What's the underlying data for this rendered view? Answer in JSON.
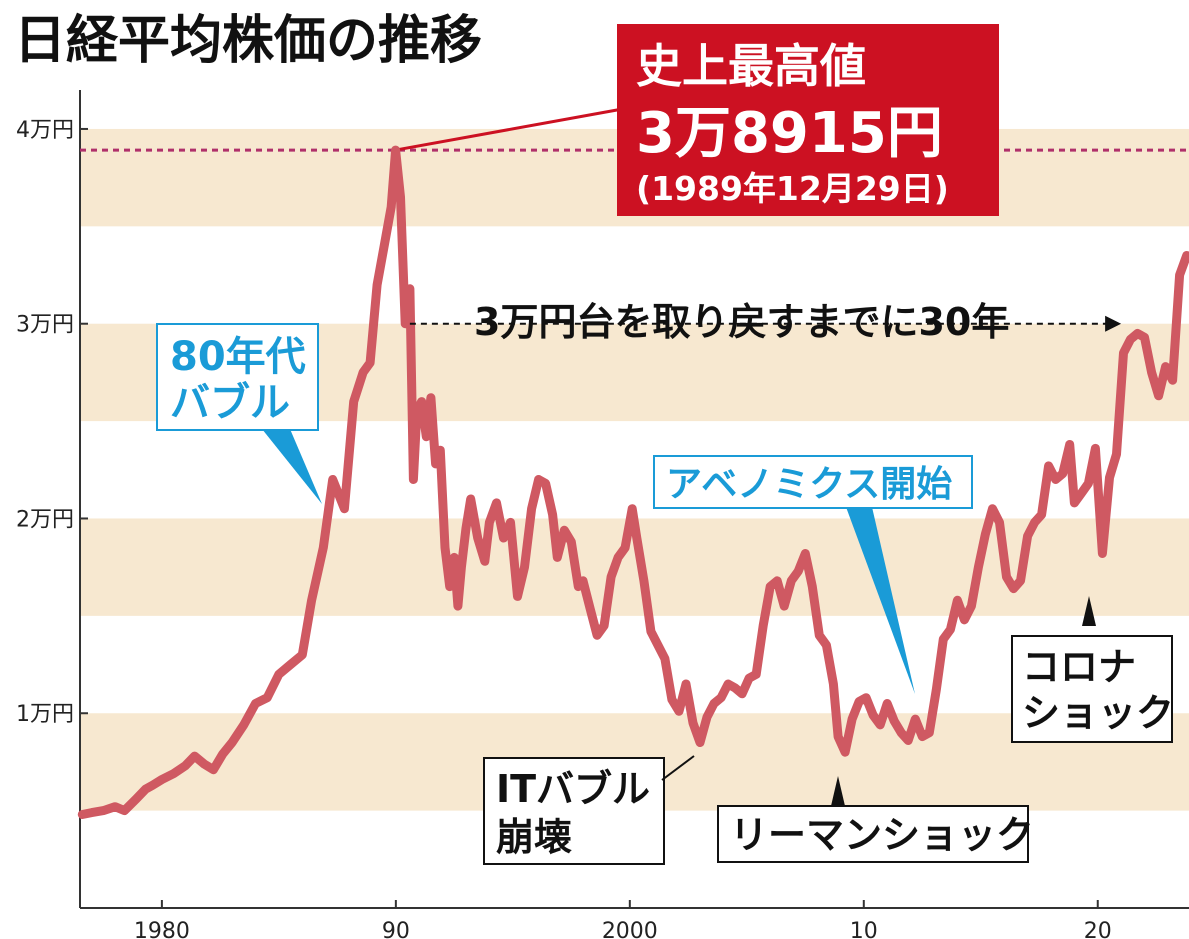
{
  "title": "日経平均株価の推移",
  "colors": {
    "line": "#cf5962",
    "band": "#f7e8d0",
    "record_box": "#cc1122",
    "record_dash": "#b0306a",
    "blue": "#1a9bd7",
    "axis": "#333333"
  },
  "chart_data": {
    "type": "line",
    "title": "日経平均株価の推移",
    "xlabel": "",
    "ylabel": "",
    "xlim": [
      1976.5,
      2023.9
    ],
    "ylim": [
      0,
      42000
    ],
    "x_tick_values": [
      1980,
      1990,
      2000,
      2010,
      2020
    ],
    "x_tick_labels": [
      "1980",
      "90",
      "2000",
      "10",
      "20"
    ],
    "y_tick_values": [
      10000,
      20000,
      30000,
      40000
    ],
    "y_tick_labels": [
      "1万円",
      "2万円",
      "3万円",
      "4万円"
    ],
    "bands": [
      [
        5000,
        10000
      ],
      [
        15000,
        20000
      ],
      [
        25000,
        30000
      ],
      [
        35000,
        40000
      ]
    ],
    "grid": false,
    "series": [
      {
        "x": [
          1976.6,
          1977.0,
          1977.5,
          1978.0,
          1978.4,
          1978.9,
          1979.3,
          1979.6,
          1980.0,
          1980.5,
          1981.0,
          1981.4,
          1981.8,
          1982.2,
          1982.6,
          1983.0,
          1983.5,
          1984.0,
          1984.5,
          1985.0,
          1985.5,
          1986.0,
          1986.4,
          1986.9,
          1987.3,
          1987.8,
          1988.2,
          1988.6,
          1988.9,
          1989.2,
          1989.5,
          1989.8,
          1989.99,
          1990.2,
          1990.4,
          1990.6,
          1990.75,
          1990.9,
          1991.1,
          1991.3,
          1991.5,
          1991.7,
          1991.9,
          1992.1,
          1992.3,
          1992.5,
          1992.65,
          1992.8,
          1993.0,
          1993.2,
          1993.5,
          1993.8,
          1994.0,
          1994.3,
          1994.6,
          1994.9,
          1995.2,
          1995.5,
          1995.8,
          1996.1,
          1996.4,
          1996.7,
          1996.9,
          1997.2,
          1997.5,
          1997.8,
          1998.0,
          1998.3,
          1998.6,
          1998.9,
          1999.2,
          1999.5,
          1999.8,
          2000.1,
          2000.3,
          2000.6,
          2000.9,
          2001.2,
          2001.5,
          2001.8,
          2002.1,
          2002.4,
          2002.7,
          2003.0,
          2003.3,
          2003.6,
          2003.9,
          2004.2,
          2004.5,
          2004.8,
          2005.1,
          2005.4,
          2005.7,
          2006.0,
          2006.3,
          2006.6,
          2006.9,
          2007.2,
          2007.5,
          2007.8,
          2008.1,
          2008.4,
          2008.7,
          2008.9,
          2009.2,
          2009.5,
          2009.8,
          2010.1,
          2010.4,
          2010.7,
          2011.0,
          2011.3,
          2011.6,
          2011.9,
          2012.2,
          2012.5,
          2012.8,
          2013.1,
          2013.4,
          2013.7,
          2014.0,
          2014.3,
          2014.6,
          2014.9,
          2015.2,
          2015.5,
          2015.8,
          2016.1,
          2016.4,
          2016.7,
          2017.0,
          2017.3,
          2017.6,
          2017.9,
          2018.2,
          2018.5,
          2018.8,
          2019.0,
          2019.3,
          2019.6,
          2019.9,
          2020.2,
          2020.5,
          2020.8,
          2021.1,
          2021.4,
          2021.7,
          2022.0,
          2022.3,
          2022.6,
          2022.9,
          2023.2,
          2023.5,
          2023.8
        ],
        "y": [
          4800,
          4900,
          5000,
          5200,
          5000,
          5600,
          6100,
          6300,
          6600,
          6900,
          7300,
          7800,
          7400,
          7100,
          7900,
          8500,
          9400,
          10500,
          10800,
          12000,
          12500,
          13000,
          15800,
          18500,
          22000,
          20500,
          26000,
          27500,
          28000,
          32000,
          34000,
          36000,
          38915,
          36500,
          30000,
          31800,
          22000,
          25500,
          26000,
          24200,
          26200,
          22800,
          23500,
          18500,
          16500,
          18000,
          15500,
          17500,
          19500,
          21000,
          19000,
          17800,
          19800,
          20800,
          19000,
          19800,
          16000,
          17500,
          20500,
          22000,
          21800,
          20200,
          18000,
          19400,
          18800,
          16500,
          16800,
          15400,
          14000,
          14500,
          17000,
          18000,
          18500,
          20500,
          19000,
          16800,
          14200,
          13500,
          12800,
          10700,
          10100,
          11500,
          9500,
          8500,
          9800,
          10500,
          10800,
          11500,
          11300,
          11000,
          11800,
          12000,
          14500,
          16500,
          16800,
          15500,
          16800,
          17300,
          18200,
          16500,
          14000,
          13500,
          11500,
          8800,
          8000,
          9700,
          10600,
          10800,
          9900,
          9400,
          10500,
          9600,
          9000,
          8600,
          9700,
          8800,
          9000,
          11200,
          13800,
          14300,
          15800,
          14800,
          15500,
          17500,
          19200,
          20500,
          19800,
          17000,
          16400,
          16800,
          19100,
          19800,
          20200,
          22700,
          22000,
          22300,
          23800,
          20800,
          21300,
          21800,
          23600,
          18200,
          22100,
          23300,
          28500,
          29200,
          29500,
          29300,
          27500,
          26300,
          27800,
          27100,
          32500,
          33500
        ]
      }
    ],
    "annotations": {
      "record_title": "史上最高値",
      "record_value": "3万8915円",
      "record_date": "(1989年12月29日)",
      "recovery_text": "3万円台を取り戻すまでに30年",
      "bubble_line1": "80年代",
      "bubble_line2": "バブル",
      "abenomics": "アベノミクス開始",
      "it_line1": "ITバブル",
      "it_line2": "崩壊",
      "lehman": "リーマンショック",
      "corona_line1": "コロナ",
      "corona_line2": "ショック"
    }
  }
}
